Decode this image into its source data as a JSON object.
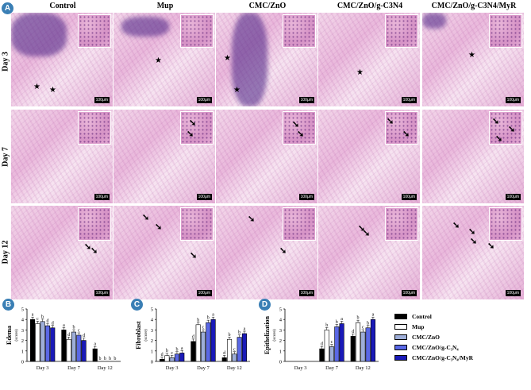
{
  "panel_labels": [
    "A",
    "B",
    "C",
    "D"
  ],
  "columns": [
    "Control",
    "Mup",
    "CMC/ZnO",
    "CMC/ZnO/g-C3N4",
    "CMC/ZnO/g-C3N4/MyR"
  ],
  "rows": [
    "Day 3",
    "Day 7",
    "Day 12"
  ],
  "scale_bar": "100μm",
  "colors": {
    "Control": "#000000",
    "Mup": "#ffffff",
    "CMC/ZnO": "#9eaed8",
    "CMC/ZnO/g-C3N4": "#5a68e6",
    "CMC/ZnO/g-C3N4/MyR": "#1a1ab8",
    "badge": "#3a7fb5"
  },
  "legend": [
    "Control",
    "Mup",
    "CMC/ZnO",
    "CMC/ZnO/g-C₃N₄",
    "CMC/ZnO/g-C₃N₄/MyR"
  ],
  "chart_data": [
    {
      "type": "bar",
      "panel": "B",
      "categories": [
        "Day 3",
        "Day 7",
        "Day 12"
      ],
      "ylabel": "Edema",
      "yunit": "(score)",
      "ylim": [
        0,
        5
      ],
      "yticks": [
        0,
        1,
        2,
        3,
        4,
        5
      ],
      "series": [
        {
          "name": "Control",
          "values": [
            4.0,
            3.0,
            1.2
          ],
          "letters": [
            "a",
            "a",
            "a"
          ]
        },
        {
          "name": "Mup",
          "values": [
            3.6,
            2.1,
            0
          ],
          "letters": [
            "c",
            "d",
            "b"
          ]
        },
        {
          "name": "CMC/ZnO",
          "values": [
            3.8,
            2.8,
            0
          ],
          "letters": [
            "b",
            "b",
            "b"
          ]
        },
        {
          "name": "CMC/ZnO/g-C₃N₄",
          "values": [
            3.4,
            2.5,
            0
          ],
          "letters": [
            "d",
            "c",
            "b"
          ]
        },
        {
          "name": "CMC/ZnO/g-C₃N₄/MyR",
          "values": [
            3.2,
            2.0,
            0
          ],
          "letters": [
            "d",
            "d",
            "b"
          ]
        }
      ]
    },
    {
      "type": "bar",
      "panel": "C",
      "categories": [
        "Day 3",
        "Day 7",
        "Day 12"
      ],
      "ylabel": "Fibroblast",
      "yunit": "(score)",
      "ylim": [
        0,
        5
      ],
      "yticks": [
        0,
        1,
        2,
        3,
        4,
        5
      ],
      "series": [
        {
          "name": "Control",
          "values": [
            0.2,
            1.9,
            0.35
          ],
          "letters": [
            "d",
            "d",
            "d"
          ]
        },
        {
          "name": "Mup",
          "values": [
            0.55,
            3.5,
            2.1
          ],
          "letters": [
            "b",
            "b",
            "b"
          ]
        },
        {
          "name": "CMC/ZnO",
          "values": [
            0.35,
            2.8,
            0.7
          ],
          "letters": [
            "c",
            "c",
            "c"
          ]
        },
        {
          "name": "CMC/ZnO/g-C₃N₄",
          "values": [
            0.7,
            3.7,
            2.3
          ],
          "letters": [
            "b",
            "b",
            "b"
          ]
        },
        {
          "name": "CMC/ZnO/g-C₃N₄/MyR",
          "values": [
            0.8,
            4.0,
            2.65
          ],
          "letters": [
            "a",
            "a",
            "a"
          ]
        }
      ]
    },
    {
      "type": "bar",
      "panel": "D",
      "categories": [
        "Day 3",
        "Day 7",
        "Day 12"
      ],
      "ylabel": "Epithelization",
      "yunit": "(score)",
      "ylim": [
        0,
        5
      ],
      "yticks": [
        0,
        1,
        2,
        3,
        4,
        5
      ],
      "series": [
        {
          "name": "Control",
          "values": [
            0,
            1.2,
            2.4
          ],
          "letters": [
            "",
            "d",
            "d"
          ]
        },
        {
          "name": "Mup",
          "values": [
            0,
            3.0,
            3.7
          ],
          "letters": [
            "",
            "b",
            "b"
          ]
        },
        {
          "name": "CMC/ZnO",
          "values": [
            0,
            1.4,
            2.8
          ],
          "letters": [
            "",
            "c",
            "c"
          ]
        },
        {
          "name": "CMC/ZnO/g-C₃N₄",
          "values": [
            0,
            3.3,
            3.2
          ],
          "letters": [
            "",
            "b",
            "b"
          ]
        },
        {
          "name": "CMC/ZnO/g-C₃N₄/MyR",
          "values": [
            0,
            3.6,
            4.0
          ],
          "letters": [
            "",
            "a",
            "a"
          ]
        }
      ]
    }
  ]
}
